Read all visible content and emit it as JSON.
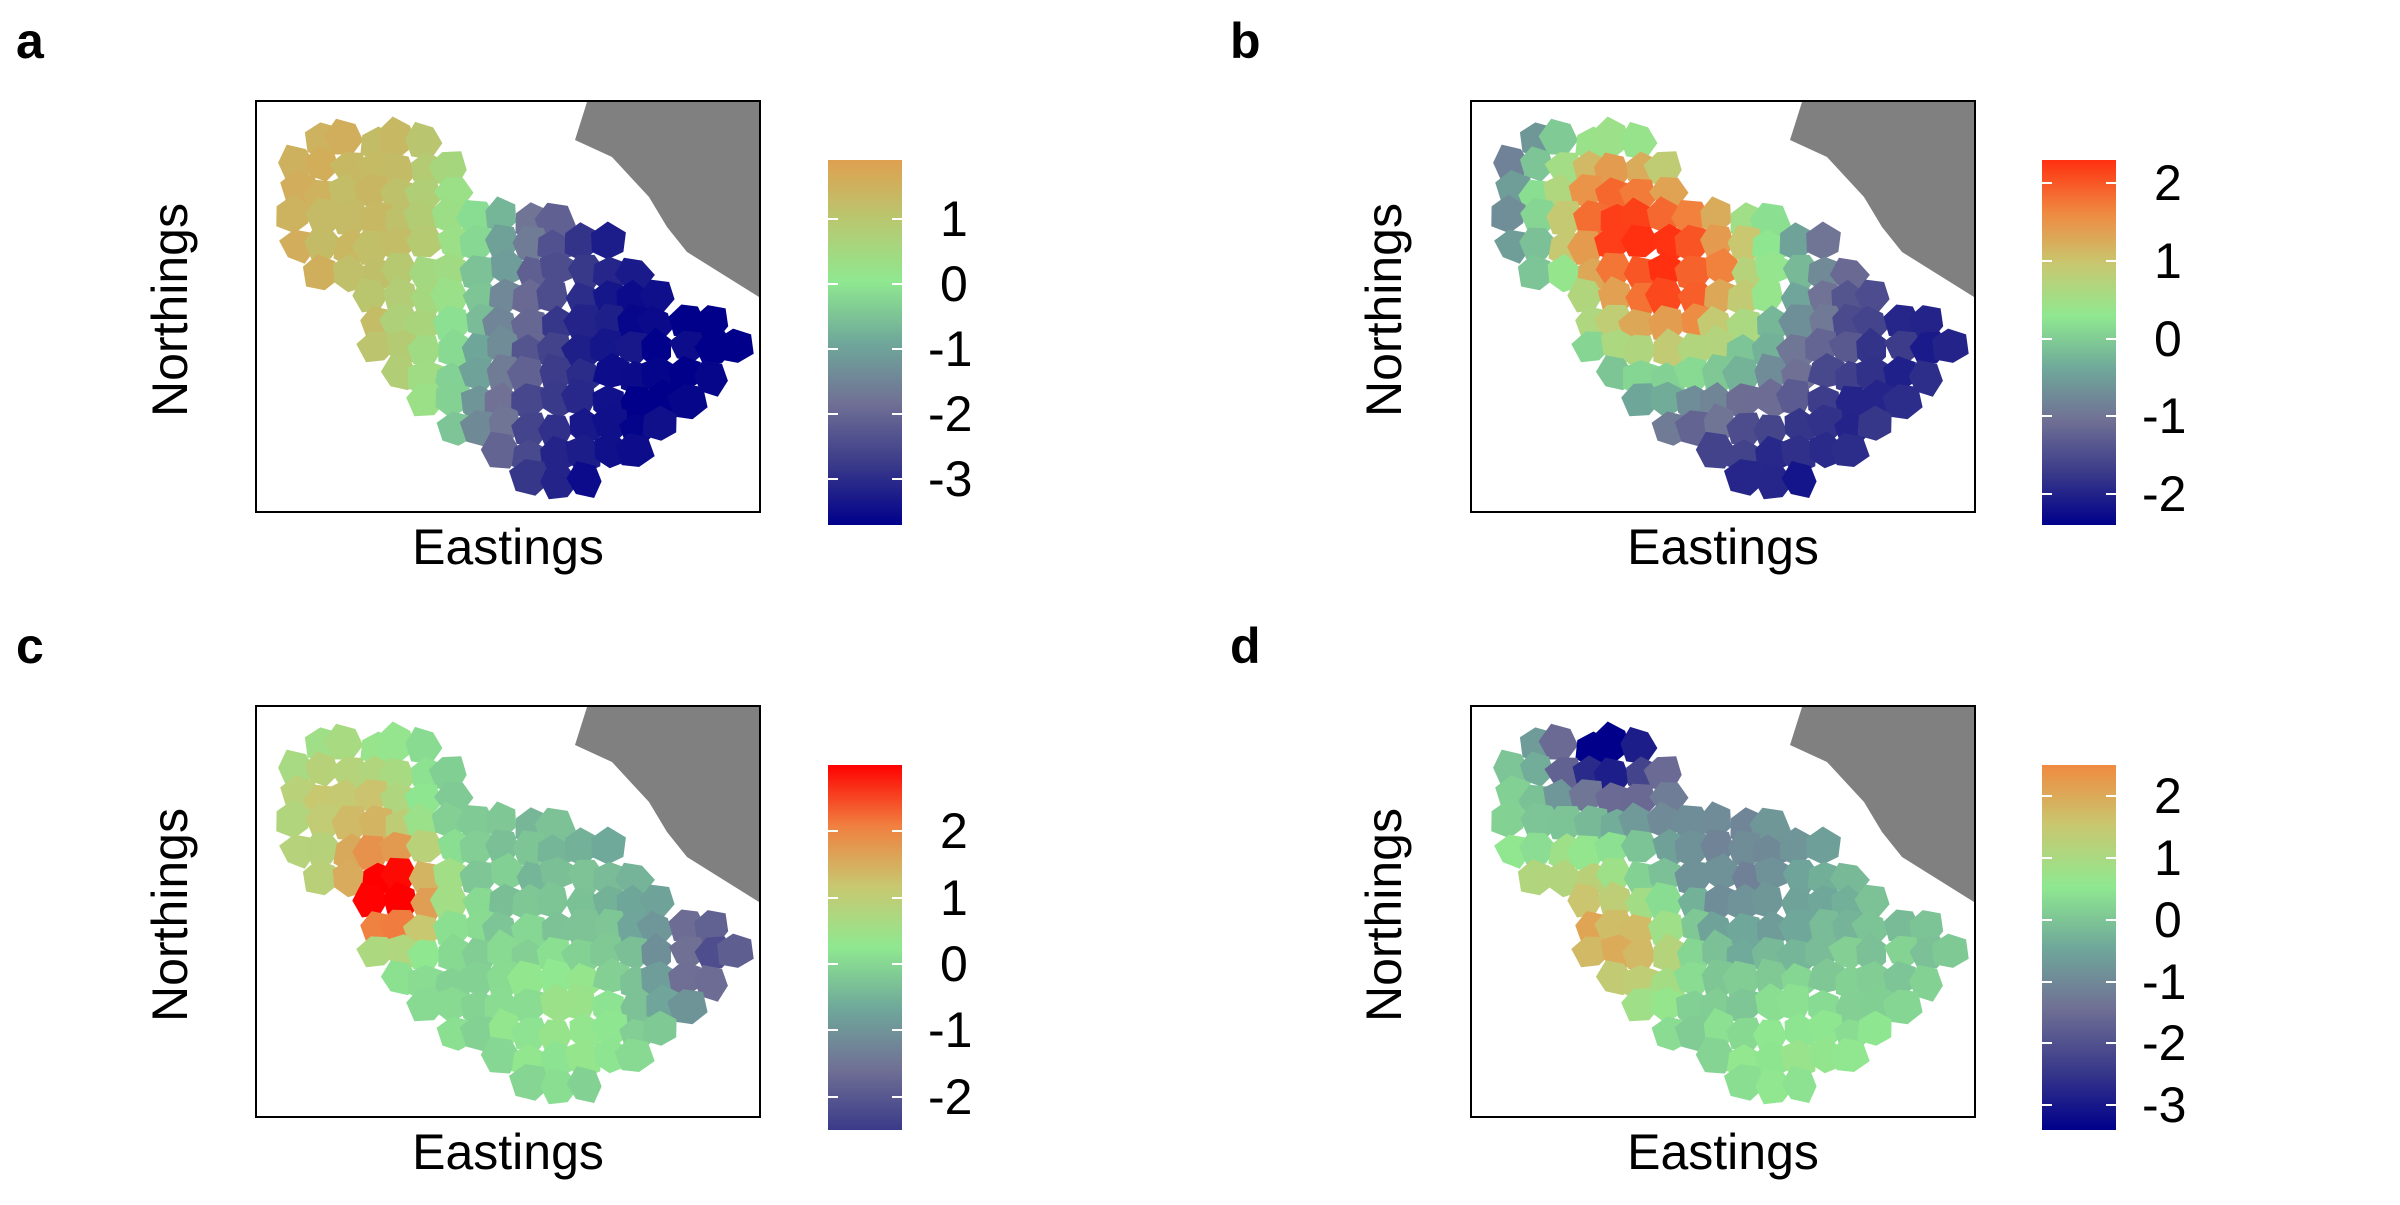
{
  "panels": [
    {
      "letter": "a",
      "xlabel": "Eastings",
      "ylabel": "Northings",
      "colorbar": {
        "min": -3.7,
        "max": 1.9,
        "ticks": [
          "1",
          "0",
          "-1",
          "-2",
          "-3"
        ],
        "tick_values": [
          1,
          0,
          -1,
          -2,
          -3
        ],
        "colors": [
          "#00008b",
          "#3a3a8a",
          "#707095",
          "#6fa89a",
          "#8fe890",
          "#b8c870",
          "#dfa050"
        ]
      },
      "pattern": "a"
    },
    {
      "letter": "b",
      "xlabel": "Eastings",
      "ylabel": "Northings",
      "colorbar": {
        "min": -2.4,
        "max": 2.3,
        "ticks": [
          "2",
          "1",
          "0",
          "-1",
          "-2"
        ],
        "tick_values": [
          2,
          1,
          0,
          -1,
          -2
        ],
        "colors": [
          "#00008b",
          "#3a3a8a",
          "#707095",
          "#6fa89a",
          "#8fe890",
          "#c8c870",
          "#f08840",
          "#ff3010"
        ]
      },
      "pattern": "b"
    },
    {
      "letter": "c",
      "xlabel": "Eastings",
      "ylabel": "Northings",
      "colorbar": {
        "min": -2.5,
        "max": 3.0,
        "ticks": [
          "2",
          "1",
          "0",
          "-1",
          "-2"
        ],
        "tick_values": [
          2,
          1,
          0,
          -1,
          -2
        ],
        "colors": [
          "#3a3a8a",
          "#707095",
          "#6fa89a",
          "#8fe890",
          "#c8c870",
          "#f08040",
          "#ff0000"
        ]
      },
      "pattern": "c"
    },
    {
      "letter": "d",
      "xlabel": "Eastings",
      "ylabel": "Northings",
      "colorbar": {
        "min": -3.4,
        "max": 2.5,
        "ticks": [
          "2",
          "1",
          "0",
          "-1",
          "-2",
          "-3"
        ],
        "tick_values": [
          2,
          1,
          0,
          -1,
          -2,
          -3
        ],
        "colors": [
          "#00008b",
          "#3a3a8a",
          "#707095",
          "#6fa89a",
          "#8fe890",
          "#c8c870",
          "#f08a40"
        ]
      },
      "pattern": "d"
    }
  ],
  "land_color": "#808080"
}
